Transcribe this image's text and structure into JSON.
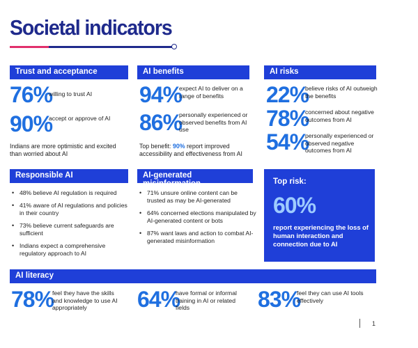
{
  "page": {
    "title": "Societal indicators",
    "number": "1"
  },
  "trust": {
    "header": "Trust and acceptance",
    "stats": [
      {
        "value": "76%",
        "label": "willing to trust AI"
      },
      {
        "value": "90%",
        "label": "accept or approve of AI"
      }
    ],
    "note": "Indians are more optimistic and excited than worried about AI"
  },
  "benefits": {
    "header": "AI benefits",
    "stats": [
      {
        "value": "94%",
        "label": "expect AI to deliver on a range of benefits"
      },
      {
        "value": "86%",
        "label": "personally experienced or observed benefits from AI use"
      }
    ],
    "note_prefix": "Top benefit: ",
    "note_highlight": "90%",
    "note_suffix": " report improved accessibility and effectiveness from AI"
  },
  "risks": {
    "header": "AI risks",
    "stats": [
      {
        "value": "22%",
        "label": "believe risks of AI outweigh the benefits"
      },
      {
        "value": "78%",
        "label": "concerned about negative outcomes from AI"
      },
      {
        "value": "54%",
        "label": "personally experienced or observed negative outcomes from AI"
      }
    ]
  },
  "responsible": {
    "header": "Responsible AI",
    "items": [
      "48% believe AI regulation is required",
      "41% aware of AI regulations and policies in their country",
      "73% believe current safeguards are sufficient",
      "Indians expect a comprehensive regulatory approach to AI"
    ]
  },
  "misinfo": {
    "header": "AI-generated misinformation",
    "items": [
      "71% unsure online content can be trusted as may be AI-generated",
      "64% concerned elections manipulated by AI-generated content or bots",
      "87% want laws and action to combat AI-generated misinformation"
    ]
  },
  "top_risk": {
    "header": "Top risk:",
    "value": "60%",
    "description": "report experiencing the loss of human interaction and connection due to AI"
  },
  "literacy": {
    "header": "AI literacy",
    "stats": [
      {
        "value": "78%",
        "label": "feel they have the skills and knowledge to use AI appropriately"
      },
      {
        "value": "64%",
        "label": "have formal or informal training in AI or related fields"
      },
      {
        "value": "83%",
        "label": "feel they can use AI tools effectively"
      }
    ]
  },
  "colors": {
    "primary": "#1f3fd8",
    "accent_text": "#1f6fe0",
    "title": "#1f2a8c",
    "rule_accent": "#e1306c"
  }
}
